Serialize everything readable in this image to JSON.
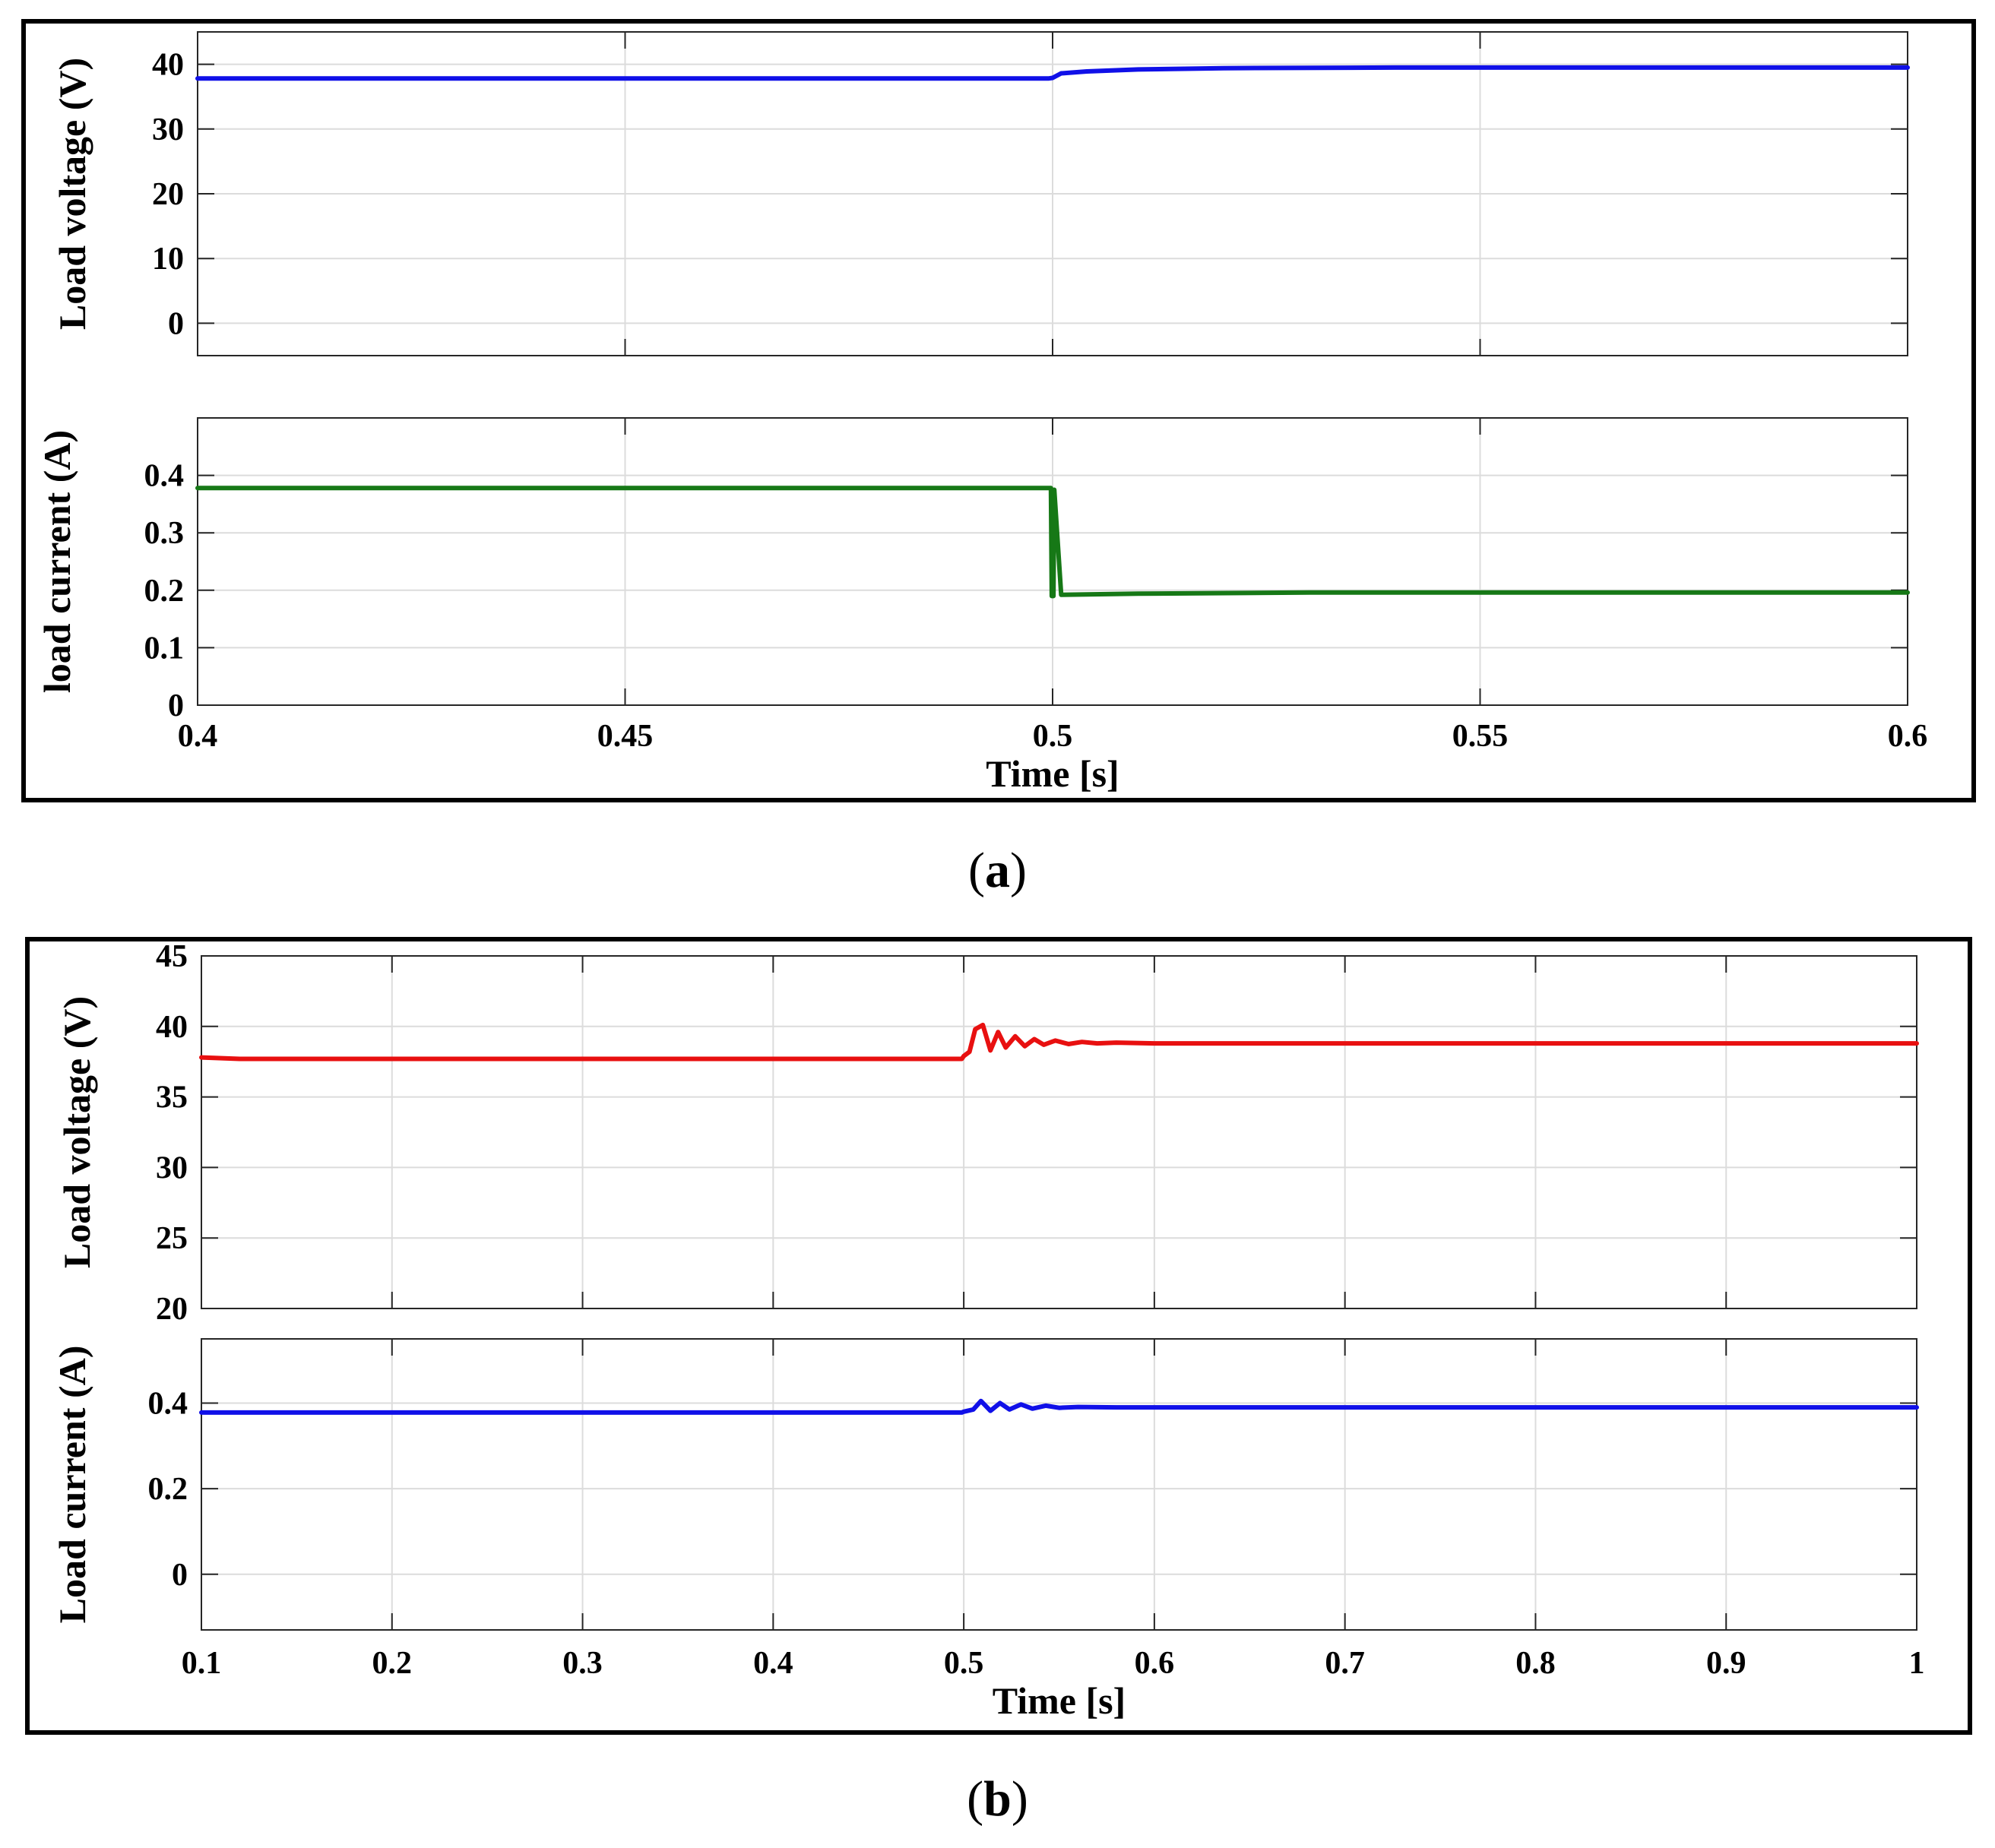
{
  "captions": {
    "a_open": "(",
    "a_letter": "a",
    "a_close": ")",
    "b_open": "(",
    "b_letter": "b",
    "b_close": ")"
  },
  "chart_data": [
    {
      "panel": "a",
      "type": "line",
      "subplot": "top",
      "xlim": [
        0.4,
        0.6
      ],
      "ylim": [
        -5,
        45
      ],
      "xticks": [
        0.4,
        0.45,
        0.5,
        0.55,
        0.6
      ],
      "yticks": [
        0,
        10,
        20,
        30,
        40
      ],
      "ytick_labels": [
        "0",
        "10",
        "20",
        "30",
        "40"
      ],
      "show_xtick_labels": false,
      "xlabel": "",
      "ylabel": "Load voltage (V)",
      "grid": true,
      "series": [
        {
          "color": "#1010e8",
          "x": [
            0.4,
            0.4995,
            0.5,
            0.501,
            0.504,
            0.51,
            0.52,
            0.54,
            0.6
          ],
          "y": [
            37.8,
            37.8,
            37.9,
            38.6,
            38.9,
            39.2,
            39.4,
            39.5,
            39.5
          ]
        }
      ]
    },
    {
      "panel": "a",
      "type": "line",
      "subplot": "bottom",
      "xlim": [
        0.4,
        0.6
      ],
      "ylim": [
        0,
        0.5
      ],
      "xticks": [
        0.4,
        0.45,
        0.5,
        0.55,
        0.6
      ],
      "xtick_labels": [
        "0.4",
        "0.45",
        "0.5",
        "0.55",
        "0.6"
      ],
      "yticks": [
        0,
        0.1,
        0.2,
        0.3,
        0.4
      ],
      "ytick_labels": [
        "0",
        "0.1",
        "0.2",
        "0.3",
        "0.4"
      ],
      "show_xtick_labels": true,
      "xlabel": "Time [s]",
      "ylabel": "load current (A)",
      "grid": true,
      "series": [
        {
          "color": "#167816",
          "x": [
            0.4,
            0.4998,
            0.4999,
            0.5001,
            0.5002,
            0.501,
            0.51,
            0.53,
            0.6
          ],
          "y": [
            0.378,
            0.378,
            0.19,
            0.19,
            0.375,
            0.192,
            0.194,
            0.196,
            0.196
          ]
        }
      ]
    },
    {
      "panel": "b",
      "type": "line",
      "subplot": "top",
      "xlim": [
        0.1,
        1.0
      ],
      "ylim": [
        20,
        45
      ],
      "xticks": [
        0.1,
        0.2,
        0.3,
        0.4,
        0.5,
        0.6,
        0.7,
        0.8,
        0.9,
        1.0
      ],
      "yticks": [
        20,
        25,
        30,
        35,
        40,
        45
      ],
      "ytick_labels": [
        "20",
        "25",
        "30",
        "35",
        "40",
        "45"
      ],
      "show_xtick_labels": false,
      "xlabel": "",
      "ylabel": "Load voltage (V)",
      "grid": true,
      "series": [
        {
          "color": "#e81010",
          "x": [
            0.1,
            0.12,
            0.3,
            0.499,
            0.5,
            0.503,
            0.506,
            0.51,
            0.514,
            0.518,
            0.522,
            0.527,
            0.532,
            0.537,
            0.542,
            0.548,
            0.555,
            0.562,
            0.57,
            0.58,
            0.6,
            1.0
          ],
          "y": [
            37.8,
            37.7,
            37.7,
            37.7,
            37.9,
            38.2,
            39.8,
            40.1,
            38.3,
            39.6,
            38.5,
            39.3,
            38.6,
            39.1,
            38.7,
            39.0,
            38.75,
            38.9,
            38.8,
            38.85,
            38.8,
            38.8
          ]
        }
      ]
    },
    {
      "panel": "b",
      "type": "line",
      "subplot": "bottom",
      "xlim": [
        0.1,
        1.0
      ],
      "ylim": [
        -0.13,
        0.55
      ],
      "xticks": [
        0.1,
        0.2,
        0.3,
        0.4,
        0.5,
        0.6,
        0.7,
        0.8,
        0.9,
        1.0
      ],
      "xtick_labels": [
        "0.1",
        "0.2",
        "0.3",
        "0.4",
        "0.5",
        "0.6",
        "0.7",
        "0.8",
        "0.9",
        "1"
      ],
      "yticks": [
        0,
        0.2,
        0.4
      ],
      "ytick_labels": [
        "0",
        "0.2",
        "0.4"
      ],
      "show_xtick_labels": true,
      "xlabel": "Time [s]",
      "ylabel": "Load current (A)",
      "grid": true,
      "series": [
        {
          "color": "#1010e8",
          "x": [
            0.1,
            0.3,
            0.499,
            0.5,
            0.505,
            0.509,
            0.514,
            0.519,
            0.524,
            0.53,
            0.536,
            0.543,
            0.55,
            0.56,
            0.58,
            1.0
          ],
          "y": [
            0.378,
            0.378,
            0.378,
            0.38,
            0.385,
            0.405,
            0.382,
            0.4,
            0.385,
            0.397,
            0.387,
            0.394,
            0.389,
            0.391,
            0.39,
            0.39
          ]
        }
      ]
    }
  ]
}
